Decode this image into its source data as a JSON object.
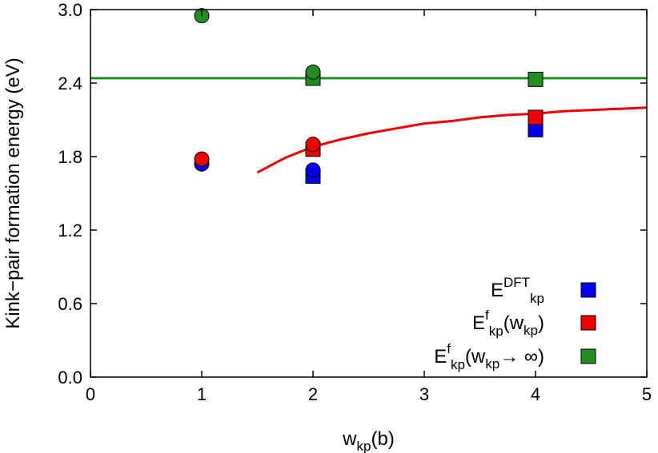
{
  "chart_data": {
    "type": "scatter",
    "xlabel": {
      "main": "w",
      "sub": "kp",
      "tail": "(b)"
    },
    "ylabel": "Kink−pair formation energy (eV)",
    "xlim": [
      0,
      5
    ],
    "ylim": [
      0,
      3
    ],
    "x_ticks": [
      "0",
      "1",
      "2",
      "3",
      "4",
      "5"
    ],
    "y_ticks": [
      "0.0",
      "0.6",
      "1.2",
      "1.8",
      "2.4",
      "3.0"
    ],
    "grid": false,
    "legend_position": "bottom-right",
    "colors": {
      "dft": "#0000ee",
      "finite": "#ee0000",
      "infinite": "#228b22",
      "line_finite": "#ee0000",
      "line_infinite": "#228b22"
    },
    "legend": [
      {
        "main": "E",
        "sub": "kp",
        "sup": "DFT",
        "tail": "",
        "color": "#0000ee"
      },
      {
        "main": "E",
        "sub": "kp",
        "sup": "f",
        "tail": "(w",
        "tail_sub": "kp",
        "tail_end": ")",
        "color": "#ee0000"
      },
      {
        "main": "E",
        "sub": "kp",
        "sup": "f",
        "tail": "(w",
        "tail_sub": "kp",
        "tail_end": "→ ∞)",
        "color": "#228b22"
      }
    ],
    "series": [
      {
        "key": "dft",
        "color": "#0000ee",
        "circles": [
          {
            "x": 1,
            "y": 1.74
          },
          {
            "x": 2,
            "y": 1.69
          }
        ],
        "squares": [
          {
            "x": 2,
            "y": 1.64
          },
          {
            "x": 4,
            "y": 2.02
          }
        ]
      },
      {
        "key": "finite",
        "color": "#ee0000",
        "circles": [
          {
            "x": 1,
            "y": 1.78
          },
          {
            "x": 2,
            "y": 1.9
          }
        ],
        "squares": [
          {
            "x": 2,
            "y": 1.86
          },
          {
            "x": 4,
            "y": 2.12
          }
        ]
      },
      {
        "key": "infinite",
        "color": "#228b22",
        "circles": [
          {
            "x": 1,
            "y": 2.95
          },
          {
            "x": 2,
            "y": 2.49
          }
        ],
        "squares": [
          {
            "x": 2,
            "y": 2.44
          },
          {
            "x": 4,
            "y": 2.43
          }
        ]
      }
    ],
    "lines": [
      {
        "key": "finite_fit",
        "color": "#ee0000",
        "x": [
          1.5,
          1.75,
          2.0,
          2.25,
          2.5,
          2.75,
          3.0,
          3.25,
          3.5,
          3.75,
          4.0,
          4.25,
          4.5,
          4.75,
          5.0
        ],
        "y": [
          1.67,
          1.79,
          1.88,
          1.94,
          1.99,
          2.03,
          2.07,
          2.09,
          2.12,
          2.14,
          2.15,
          2.17,
          2.18,
          2.19,
          2.2
        ]
      },
      {
        "key": "infinite_limit",
        "color": "#228b22",
        "x": [
          0,
          5
        ],
        "y": [
          2.44,
          2.44
        ]
      }
    ]
  }
}
